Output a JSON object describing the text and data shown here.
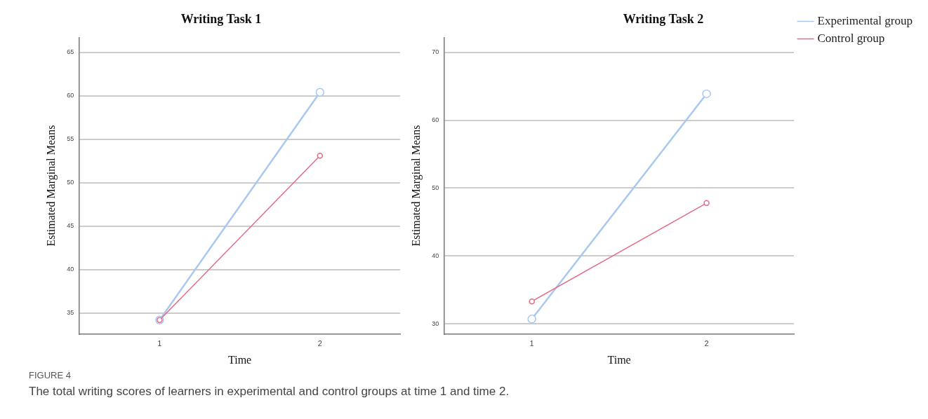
{
  "chart_data": [
    {
      "type": "line",
      "title": "Writing Task 1",
      "xlabel": "Time",
      "ylabel": "Estimated Marginal Means",
      "categories": [
        "1",
        "2"
      ],
      "series": [
        {
          "color": "#a9c8f0",
          "values": [
            34.2,
            60.4
          ]
        },
        {
          "color": "#e36b85",
          "values": [
            34.2,
            53.1
          ]
        }
      ],
      "ylim": [
        32.6,
        66.7
      ],
      "yticks": [
        35,
        40,
        45,
        50,
        55,
        60,
        65
      ],
      "grid": "y",
      "legend": false,
      "marker": "circle",
      "line_style": "solid",
      "annotations": [
        "FIGURE 4",
        "The total writing scores of learners in experimental and control groups at time 1 and time 2."
      ]
    },
    {
      "type": "line",
      "title": "Writing Task 2",
      "xlabel": "Time",
      "ylabel": "Estimated Marginal Means",
      "categories": [
        "1",
        "2"
      ],
      "series": [
        {
          "name": "Experimental group",
          "color": "#a9c8f0",
          "values": [
            30.7,
            63.9
          ]
        },
        {
          "name": "Control group",
          "color": "#e36b85",
          "values": [
            33.3,
            47.8
          ]
        }
      ],
      "ylim": [
        28.5,
        72.2
      ],
      "yticks": [
        30,
        40,
        50,
        60,
        70
      ],
      "grid": "y",
      "legend": "right",
      "marker": "circle",
      "line_style": "solid"
    }
  ]
}
